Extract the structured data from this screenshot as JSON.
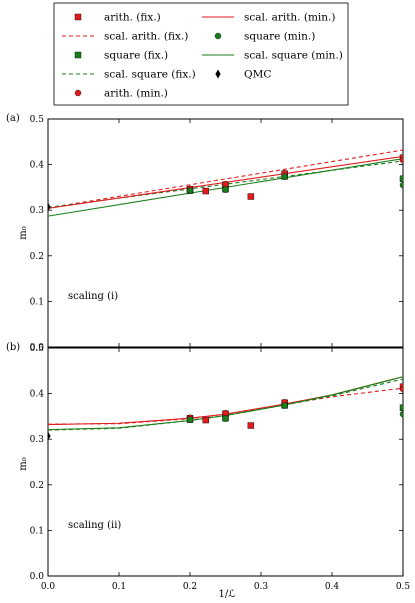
{
  "colors": {
    "red": "#e31a1c",
    "green": "#1a7f1a",
    "black": "#000000"
  },
  "legend": {
    "placement": "top",
    "entries": [
      {
        "label": "arith. (fix.)",
        "kind": "square-marker",
        "color": "red"
      },
      {
        "label": "scal. arith. (fix.)",
        "kind": "dashed-line",
        "color": "red"
      },
      {
        "label": "square (fix.)",
        "kind": "square-marker",
        "color": "green"
      },
      {
        "label": "scal. square (fix.)",
        "kind": "dashed-line",
        "color": "green"
      },
      {
        "label": "arith. (min.)",
        "kind": "circle-marker",
        "color": "red"
      },
      {
        "label": "scal. arith. (min.)",
        "kind": "solid-line",
        "color": "red"
      },
      {
        "label": "square (min.)",
        "kind": "circle-marker",
        "color": "green"
      },
      {
        "label": "scal. square (min.)",
        "kind": "solid-line",
        "color": "green"
      },
      {
        "label": "QMC",
        "kind": "diamond-marker",
        "color": "black"
      }
    ]
  },
  "chart_data": [
    {
      "type": "scatter",
      "panel_label": "(a)",
      "annotation": "scaling (i)",
      "xlabel": "",
      "ylabel": "m₀",
      "xlim": [
        0,
        0.5
      ],
      "ylim": [
        0,
        0.5
      ],
      "xticks": [
        0.0,
        0.1,
        0.2,
        0.3,
        0.4,
        0.5
      ],
      "yticks": [
        0.0,
        0.1,
        0.2,
        0.3,
        0.4,
        0.5
      ],
      "show_xtick_labels": false,
      "grid": false,
      "series": [
        {
          "name": "arith. (fix.)",
          "x": [
            0.2,
            0.2222,
            0.25,
            0.2857,
            0.3333,
            0.5
          ],
          "y": [
            0.346,
            0.342,
            0.356,
            0.33,
            0.38,
            0.415
          ]
        },
        {
          "name": "square (fix.)",
          "x": [
            0.2,
            0.25,
            0.3333,
            0.5
          ],
          "y": [
            0.343,
            0.346,
            0.374,
            0.369
          ]
        },
        {
          "name": "arith. (min.)",
          "x": [
            0.2,
            0.25,
            0.3333,
            0.5
          ],
          "y": [
            0.347,
            0.357,
            0.381,
            0.41
          ]
        },
        {
          "name": "square (min.)",
          "x": [
            0.2,
            0.25,
            0.3333,
            0.5
          ],
          "y": [
            0.343,
            0.345,
            0.374,
            0.355
          ]
        },
        {
          "name": "QMC",
          "x": [
            0.0
          ],
          "y": [
            0.307
          ]
        },
        {
          "name": "scal. arith. (fix.)",
          "x": [
            0.0,
            0.5
          ],
          "y": [
            0.305,
            0.432
          ]
        },
        {
          "name": "scal. square (fix.)",
          "x": [
            0.0,
            0.5
          ],
          "y": [
            0.306,
            0.408
          ]
        },
        {
          "name": "scal. arith. (min.)",
          "x": [
            0.0,
            0.5
          ],
          "y": [
            0.304,
            0.418
          ]
        },
        {
          "name": "scal. square (min.)",
          "x": [
            0.0,
            0.5
          ],
          "y": [
            0.287,
            0.413
          ]
        }
      ]
    },
    {
      "type": "scatter",
      "panel_label": "(b)",
      "annotation": "scaling (ii)",
      "xlabel": "1/ℒ",
      "ylabel": "m₀",
      "xlim": [
        0,
        0.5
      ],
      "ylim": [
        0,
        0.5
      ],
      "xticks": [
        0.0,
        0.1,
        0.2,
        0.3,
        0.4,
        0.5
      ],
      "yticks": [
        0.0,
        0.1,
        0.2,
        0.3,
        0.4,
        0.5
      ],
      "show_xtick_labels": true,
      "grid": false,
      "series": [
        {
          "name": "arith. (fix.)",
          "x": [
            0.2,
            0.2222,
            0.25,
            0.2857,
            0.3333,
            0.5
          ],
          "y": [
            0.346,
            0.342,
            0.356,
            0.33,
            0.38,
            0.415
          ]
        },
        {
          "name": "square (fix.)",
          "x": [
            0.2,
            0.25,
            0.3333,
            0.5
          ],
          "y": [
            0.343,
            0.346,
            0.374,
            0.369
          ]
        },
        {
          "name": "arith. (min.)",
          "x": [
            0.2,
            0.25,
            0.3333,
            0.5
          ],
          "y": [
            0.347,
            0.357,
            0.381,
            0.41
          ]
        },
        {
          "name": "square (min.)",
          "x": [
            0.2,
            0.25,
            0.3333,
            0.5
          ],
          "y": [
            0.343,
            0.345,
            0.374,
            0.355
          ]
        },
        {
          "name": "QMC",
          "x": [
            0.0
          ],
          "y": [
            0.307
          ]
        },
        {
          "name": "scal. arith. (fix.)",
          "x": [
            0.0,
            0.1,
            0.2,
            0.25,
            0.3333,
            0.4,
            0.5
          ],
          "y": [
            0.333,
            0.334,
            0.345,
            0.355,
            0.376,
            0.393,
            0.412
          ]
        },
        {
          "name": "scal. square (fix.)",
          "x": [
            0.0,
            0.1,
            0.2,
            0.25,
            0.3333,
            0.4,
            0.5
          ],
          "y": [
            0.32,
            0.324,
            0.341,
            0.352,
            0.375,
            0.395,
            0.432
          ]
        },
        {
          "name": "scal. arith. (min.)",
          "x": [
            0.0,
            0.1,
            0.2,
            0.25,
            0.3333,
            0.4,
            0.5
          ],
          "y": [
            0.332,
            0.335,
            0.346,
            0.355,
            0.377,
            0.397,
            0.437
          ]
        },
        {
          "name": "scal. square (min.)",
          "x": [
            0.0,
            0.1,
            0.2,
            0.25,
            0.3333,
            0.4,
            0.5
          ],
          "y": [
            0.321,
            0.325,
            0.341,
            0.352,
            0.375,
            0.397,
            0.437
          ]
        }
      ]
    }
  ]
}
